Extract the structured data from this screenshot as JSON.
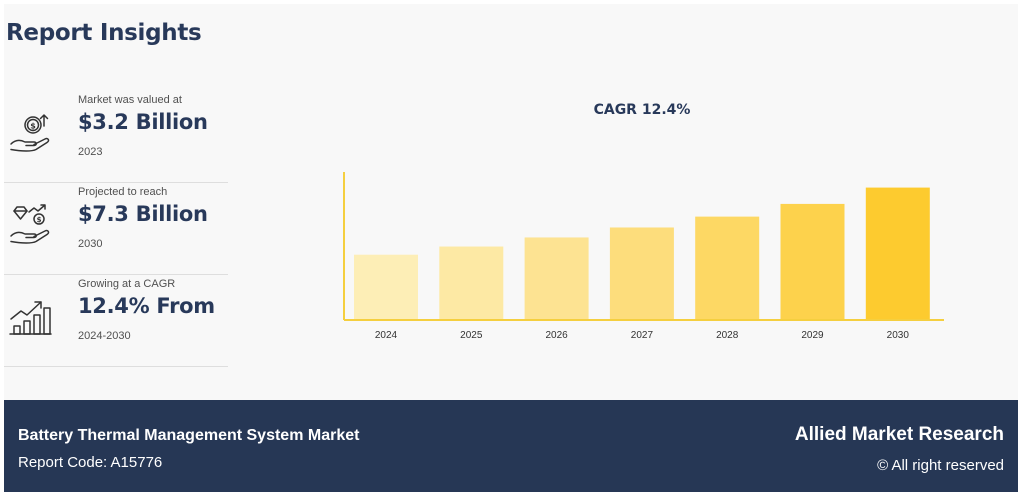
{
  "header": {
    "title": "Report Insights"
  },
  "stats": [
    {
      "label": "Market was valued at",
      "value": "$3.2 Billion",
      "year": "2023"
    },
    {
      "label": "Projected to reach",
      "value": "$7.3 Billion",
      "year": "2030"
    },
    {
      "label": "Growing at a CAGR",
      "value": "12.4% From",
      "year": "2024-2030"
    }
  ],
  "icons": [
    "money-hand-icon",
    "gem-growth-hand-icon",
    "growth-bars-icon"
  ],
  "chart_data": {
    "type": "bar",
    "title": "CAGR 12.4%",
    "categories": [
      "2024",
      "2025",
      "2026",
      "2027",
      "2028",
      "2029",
      "2030"
    ],
    "values": [
      3.6,
      4.05,
      4.55,
      5.1,
      5.7,
      6.4,
      7.3
    ],
    "xlabel": "",
    "ylabel": "",
    "ylim": [
      0,
      8.6
    ],
    "grid": false,
    "legend": "none",
    "colors": [
      "#fdeeb6",
      "#fde9a4",
      "#fde392",
      "#fddd7c",
      "#fdd864",
      "#fdd24c",
      "#fdcb2f"
    ],
    "axis_color": "#f5cf3f"
  },
  "footer": {
    "market": "Battery Thermal Management System Market",
    "code": "Report Code: A15776",
    "brand": "Allied Market Research",
    "rights": "© All right reserved"
  },
  "colors": {
    "accent": "#fdcb2f",
    "navy": "#263755",
    "heading": "#28395a"
  }
}
